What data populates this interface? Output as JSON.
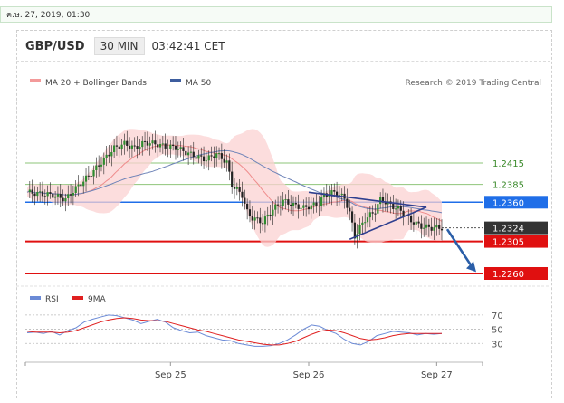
{
  "date_stamp": "ค.ษ. 27, 2019, 01:30",
  "header": {
    "symbol": "GBP/USD",
    "timeframe": "30 MIN",
    "time": "03:42:41 CET"
  },
  "legend": {
    "bollinger": "MA 20 + Bollinger Bands",
    "ma50": "MA 50",
    "credit": "Research © 2019 Trading Central",
    "colors": {
      "bollinger": "#f39a9a",
      "ma50": "#3d5d9e"
    }
  },
  "rsi_legend": {
    "rsi": "RSI",
    "ma9": "9MA",
    "colors": {
      "rsi": "#6b8ad6",
      "ma9": "#e02020"
    }
  },
  "chart_data": [
    {
      "type": "line",
      "title": "",
      "x_ticks": [
        "Sep 25",
        "Sep 26",
        "Sep 27"
      ],
      "series": [
        {
          "name": "MA 20 + Bollinger Bands",
          "role": "ma20"
        },
        {
          "name": "MA 50",
          "role": "ma50"
        }
      ],
      "price_path": [
        [
          0,
          1.2374
        ],
        [
          5,
          1.2372
        ],
        [
          10,
          1.237
        ],
        [
          15,
          1.2364
        ],
        [
          18,
          1.2376
        ],
        [
          22,
          1.239
        ],
        [
          26,
          1.2404
        ],
        [
          30,
          1.242
        ],
        [
          34,
          1.2436
        ],
        [
          38,
          1.2442
        ],
        [
          42,
          1.2436
        ],
        [
          46,
          1.2444
        ],
        [
          50,
          1.2442
        ],
        [
          54,
          1.2438
        ],
        [
          58,
          1.2437
        ],
        [
          62,
          1.243
        ],
        [
          66,
          1.2424
        ],
        [
          70,
          1.242
        ],
        [
          74,
          1.2428
        ],
        [
          78,
          1.2416
        ],
        [
          80,
          1.2384
        ],
        [
          84,
          1.237
        ],
        [
          86,
          1.2346
        ],
        [
          88,
          1.2338
        ],
        [
          92,
          1.2332
        ],
        [
          96,
          1.235
        ],
        [
          100,
          1.2362
        ],
        [
          104,
          1.2356
        ],
        [
          108,
          1.2352
        ],
        [
          112,
          1.2356
        ],
        [
          114,
          1.2358
        ],
        [
          116,
          1.237
        ],
        [
          120,
          1.2374
        ],
        [
          124,
          1.2366
        ],
        [
          126,
          1.2345
        ],
        [
          128,
          1.2312
        ],
        [
          132,
          1.2336
        ],
        [
          136,
          1.2348
        ],
        [
          138,
          1.2364
        ],
        [
          142,
          1.2356
        ],
        [
          146,
          1.2348
        ],
        [
          150,
          1.2334
        ],
        [
          154,
          1.2326
        ],
        [
          158,
          1.2324
        ],
        [
          162,
          1.2324
        ]
      ],
      "levels": [
        {
          "value": 1.2415,
          "label": "1.2415",
          "color": "#8ec47a",
          "style": "thin"
        },
        {
          "value": 1.2385,
          "label": "1.2385",
          "color": "#8ec47a",
          "style": "thin"
        },
        {
          "value": 1.236,
          "label": "1.2360",
          "color": "#1f6ee8",
          "style": "box"
        },
        {
          "value": 1.2324,
          "label": "1.2324",
          "color": "#333333",
          "style": "current"
        },
        {
          "value": 1.2305,
          "label": "1.2305",
          "color": "#e01010",
          "style": "box"
        },
        {
          "value": 1.226,
          "label": "1.2260",
          "color": "#e01010",
          "style": "box"
        }
      ]
    },
    {
      "type": "line",
      "title": "",
      "ylim": [
        10,
        80
      ],
      "y_ticks": [
        "70",
        "50",
        "30"
      ],
      "series": [
        {
          "name": "RSI",
          "values": [
            45,
            46,
            44,
            47,
            42,
            48,
            52,
            60,
            64,
            67,
            70,
            69,
            66,
            63,
            58,
            61,
            64,
            60,
            52,
            48,
            45,
            46,
            41,
            38,
            35,
            34,
            30,
            28,
            26,
            26,
            27,
            30,
            35,
            42,
            50,
            56,
            54,
            48,
            44,
            36,
            30,
            28,
            33,
            41,
            44,
            47,
            46,
            45,
            42,
            44,
            43,
            44
          ]
        },
        {
          "name": "9MA",
          "values": [
            47,
            46,
            46,
            46,
            45,
            46,
            48,
            52,
            56,
            60,
            63,
            65,
            66,
            65,
            63,
            62,
            62,
            61,
            58,
            55,
            52,
            49,
            47,
            44,
            41,
            38,
            35,
            33,
            31,
            29,
            28,
            28,
            30,
            33,
            38,
            43,
            47,
            49,
            48,
            45,
            41,
            37,
            35,
            36,
            38,
            41,
            43,
            44,
            44,
            44,
            44,
            44
          ]
        }
      ]
    }
  ],
  "title": ""
}
